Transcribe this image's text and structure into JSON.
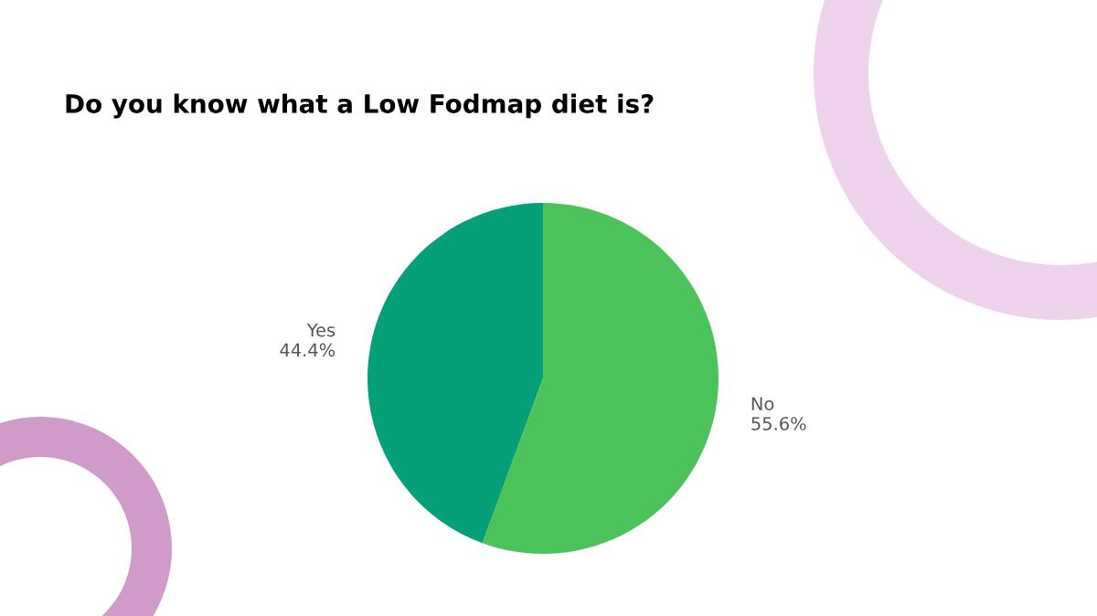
{
  "chart_data": {
    "type": "pie",
    "title": "Do you know what a Low Fodmap diet is?",
    "categories": [
      "Yes",
      "No"
    ],
    "values": [
      44.4,
      55.6
    ],
    "value_labels": [
      "44.4%",
      "55.6%"
    ],
    "colors": [
      "#05a078",
      "#4bc25a"
    ]
  }
}
